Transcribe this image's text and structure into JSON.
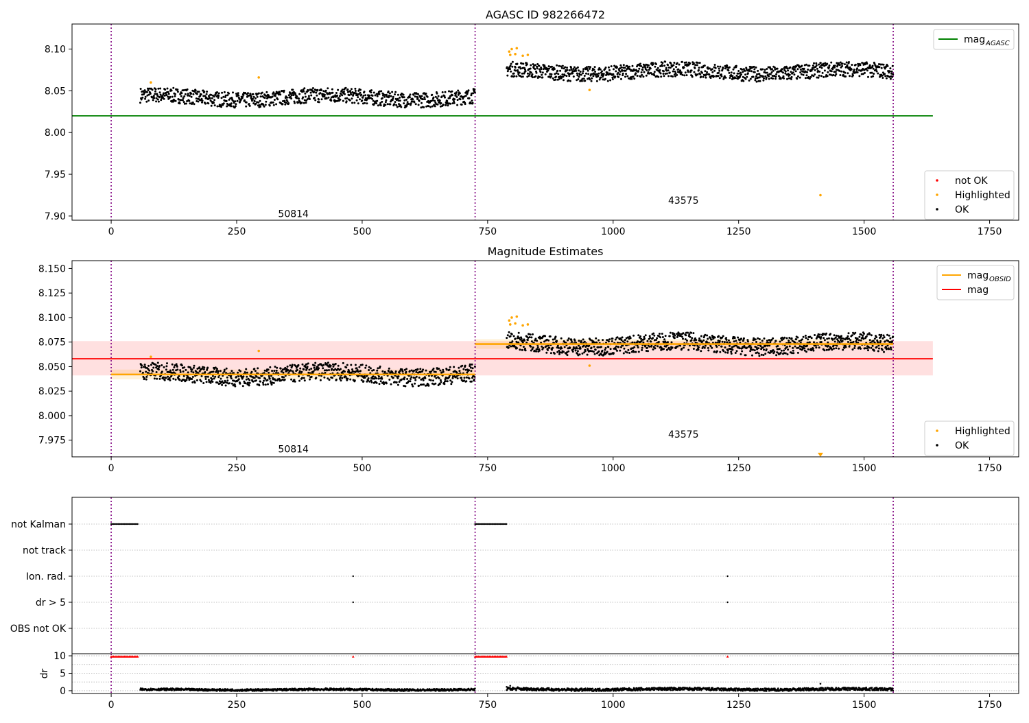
{
  "chart_data": [
    {
      "type": "scatter",
      "title": "AGASC ID 982266472",
      "xlim": [
        -78,
        1808
      ],
      "ylim": [
        7.895,
        8.13
      ],
      "xticks": [
        0,
        250,
        500,
        750,
        1000,
        1250,
        1500,
        1750
      ],
      "yticks": [
        "7.90",
        "7.95",
        "8.00",
        "8.05",
        "8.10"
      ],
      "vlines": [
        0,
        725,
        1558
      ],
      "hlines": [
        {
          "name": "mag_AGASC",
          "y": 8.02,
          "x_end": 1637,
          "color": "#008000"
        }
      ],
      "annotations": [
        {
          "text": "50814",
          "x": 363,
          "y": 7.903
        },
        {
          "text": "43575",
          "x": 1140,
          "y": 7.919
        }
      ],
      "segments": [
        {
          "x_start": 58,
          "x_end": 725,
          "level": 8.042,
          "amplitude": 0.009
        },
        {
          "x_start": 788,
          "x_end": 1558,
          "level": 8.073,
          "amplitude": 0.009
        }
      ],
      "series": [
        {
          "name": "not OK",
          "color": "#ff0000",
          "x": [],
          "y": []
        },
        {
          "name": "Highlighted",
          "color": "#ffa500",
          "x": [
            79,
            294,
            793,
            795,
            798,
            805,
            808,
            820,
            830,
            953,
            1413
          ],
          "y": [
            8.06,
            8.066,
            8.097,
            8.093,
            8.1,
            8.094,
            8.101,
            8.092,
            8.093,
            8.051,
            7.925
          ]
        },
        {
          "name": "OK",
          "color": "#000000",
          "x": [],
          "y": []
        }
      ],
      "legends": [
        {
          "position": "upper-right",
          "entries": [
            {
              "label": "mag",
              "sub": "AGASC",
              "kind": "line",
              "color": "#008000"
            }
          ]
        },
        {
          "position": "lower-right",
          "entries": [
            {
              "label": "not OK",
              "kind": "dot",
              "color": "#ff0000"
            },
            {
              "label": "Highlighted",
              "kind": "dot",
              "color": "#ffa500"
            },
            {
              "label": "OK",
              "kind": "dot",
              "color": "#000000"
            }
          ]
        }
      ]
    },
    {
      "type": "scatter",
      "title": "Magnitude Estimates",
      "xlim": [
        -78,
        1808
      ],
      "ylim": [
        7.958,
        8.158
      ],
      "xticks": [
        0,
        250,
        500,
        750,
        1000,
        1250,
        1500,
        1750
      ],
      "yticks": [
        "7.975",
        "8.000",
        "8.025",
        "8.050",
        "8.075",
        "8.100",
        "8.125",
        "8.150"
      ],
      "vlines": [
        0,
        725,
        1558
      ],
      "mag_line": {
        "name": "mag",
        "y": 8.058,
        "band": [
          8.041,
          8.076
        ],
        "x_end": 1637,
        "color": "#ff0000"
      },
      "obsid_lines": [
        {
          "x_start": 0,
          "x_end": 725,
          "y": 8.042,
          "band": [
            8.037,
            8.047
          ]
        },
        {
          "x_start": 725,
          "x_end": 1558,
          "y": 8.073,
          "band": [
            8.068,
            8.078
          ]
        }
      ],
      "annotations": [
        {
          "text": "50814",
          "x": 363,
          "y": 7.966
        },
        {
          "text": "43575",
          "x": 1140,
          "y": 7.981
        }
      ],
      "segments": [
        {
          "x_start": 58,
          "x_end": 725,
          "level": 8.042,
          "amplitude": 0.009
        },
        {
          "x_start": 788,
          "x_end": 1558,
          "level": 8.073,
          "amplitude": 0.009
        }
      ],
      "series": [
        {
          "name": "Highlighted",
          "color": "#ffa500",
          "x": [
            79,
            294,
            793,
            795,
            798,
            805,
            808,
            820,
            830,
            953,
            1413
          ],
          "y": [
            8.06,
            8.066,
            8.097,
            8.093,
            8.1,
            8.094,
            8.101,
            8.092,
            8.093,
            8.051,
            7.96
          ]
        },
        {
          "name": "OK",
          "color": "#000000",
          "x": [],
          "y": []
        }
      ],
      "legends": [
        {
          "position": "upper-right",
          "entries": [
            {
              "label": "mag",
              "sub": "OBSID",
              "kind": "line",
              "color": "#ffa500"
            },
            {
              "label": "mag",
              "kind": "line",
              "color": "#ff0000"
            }
          ]
        },
        {
          "position": "lower-right",
          "entries": [
            {
              "label": "Highlighted",
              "kind": "dot",
              "color": "#ffa500"
            },
            {
              "label": "OK",
              "kind": "dot",
              "color": "#000000"
            }
          ]
        }
      ]
    },
    {
      "type": "scatter",
      "xlim": [
        -78,
        1808
      ],
      "vlines": [
        0,
        725,
        1558
      ],
      "categories": [
        "not Kalman",
        "not track",
        "Ion. rad.",
        "dr > 5",
        "OBS not OK"
      ],
      "flag_runs": [
        {
          "category": "not Kalman",
          "x_start": 0,
          "x_end": 55
        },
        {
          "category": "not Kalman",
          "x_start": 725,
          "x_end": 788
        }
      ],
      "flag_points": [
        {
          "category": "Ion. rad.",
          "x": [
            482,
            1228
          ]
        },
        {
          "category": "dr > 5",
          "x": [
            482,
            1228
          ]
        }
      ]
    },
    {
      "type": "scatter",
      "ylabel": "dr",
      "xlim": [
        -78,
        1808
      ],
      "ylim": [
        -0.8,
        10.6
      ],
      "xticks": [
        0,
        250,
        500,
        750,
        1000,
        1250,
        1500,
        1750
      ],
      "yticks": [
        0,
        5,
        10
      ],
      "vlines": [
        0,
        725,
        1558
      ],
      "capped_runs": [
        {
          "x_start": 0,
          "x_end": 55,
          "y": 9.8,
          "color": "#ff0000"
        },
        {
          "x_start": 725,
          "x_end": 788,
          "y": 9.8,
          "color": "#ff0000"
        }
      ],
      "capped_points": [
        {
          "x": 482,
          "y": 9.8
        },
        {
          "x": 1228,
          "y": 9.8
        }
      ],
      "segments": [
        {
          "x_start": 58,
          "x_end": 725,
          "level": 0.3,
          "amplitude": 0.3
        },
        {
          "x_start": 788,
          "x_end": 1558,
          "level": 0.4,
          "amplitude": 0.4
        }
      ],
      "outliers": {
        "x": [
          788,
          795,
          800,
          810,
          1413
        ],
        "y": [
          1.1,
          1.4,
          0.9,
          1.0,
          2.0
        ]
      }
    }
  ]
}
